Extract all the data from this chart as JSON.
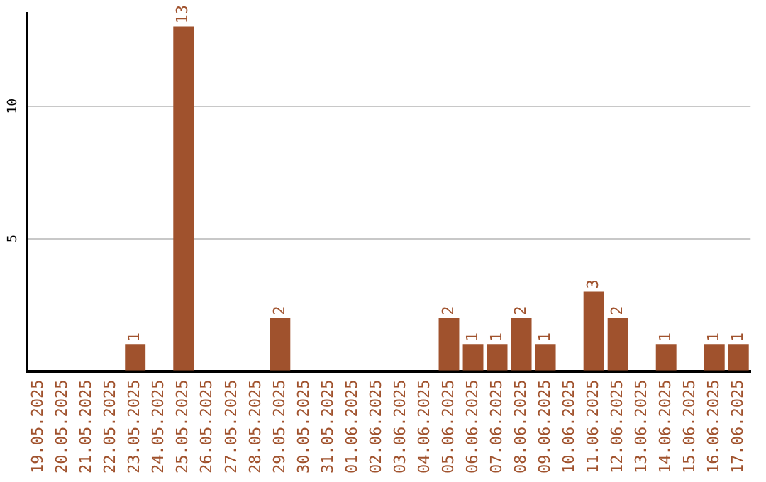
{
  "chart_data": {
    "type": "bar",
    "categories": [
      "19.05.2025",
      "20.05.2025",
      "21.05.2025",
      "22.05.2025",
      "23.05.2025",
      "24.05.2025",
      "25.05.2025",
      "26.05.2025",
      "27.05.2025",
      "28.05.2025",
      "29.05.2025",
      "30.05.2025",
      "31.05.2025",
      "01.06.2025",
      "02.06.2025",
      "03.06.2025",
      "04.06.2025",
      "05.06.2025",
      "06.06.2025",
      "07.06.2025",
      "08.06.2025",
      "09.06.2025",
      "10.06.2025",
      "11.06.2025",
      "12.06.2025",
      "13.06.2025",
      "14.06.2025",
      "15.06.2025",
      "16.06.2025",
      "17.06.2025"
    ],
    "values": [
      0,
      0,
      0,
      0,
      1,
      0,
      13,
      0,
      0,
      0,
      2,
      0,
      0,
      0,
      0,
      0,
      0,
      2,
      1,
      1,
      2,
      1,
      0,
      3,
      2,
      0,
      1,
      0,
      1,
      1
    ],
    "value_labels": [
      null,
      null,
      null,
      null,
      "1",
      null,
      "13",
      null,
      null,
      null,
      "2",
      null,
      null,
      null,
      null,
      null,
      null,
      "2",
      "1",
      "1",
      "2",
      "1",
      null,
      "3",
      "2",
      null,
      "1",
      null,
      "1",
      "1"
    ],
    "color": "#a0522d",
    "ylim": [
      0,
      13.5
    ],
    "yticks": [
      {
        "value": 0,
        "label": null
      },
      5,
      10
    ],
    "grid": "y",
    "legend": false
  }
}
